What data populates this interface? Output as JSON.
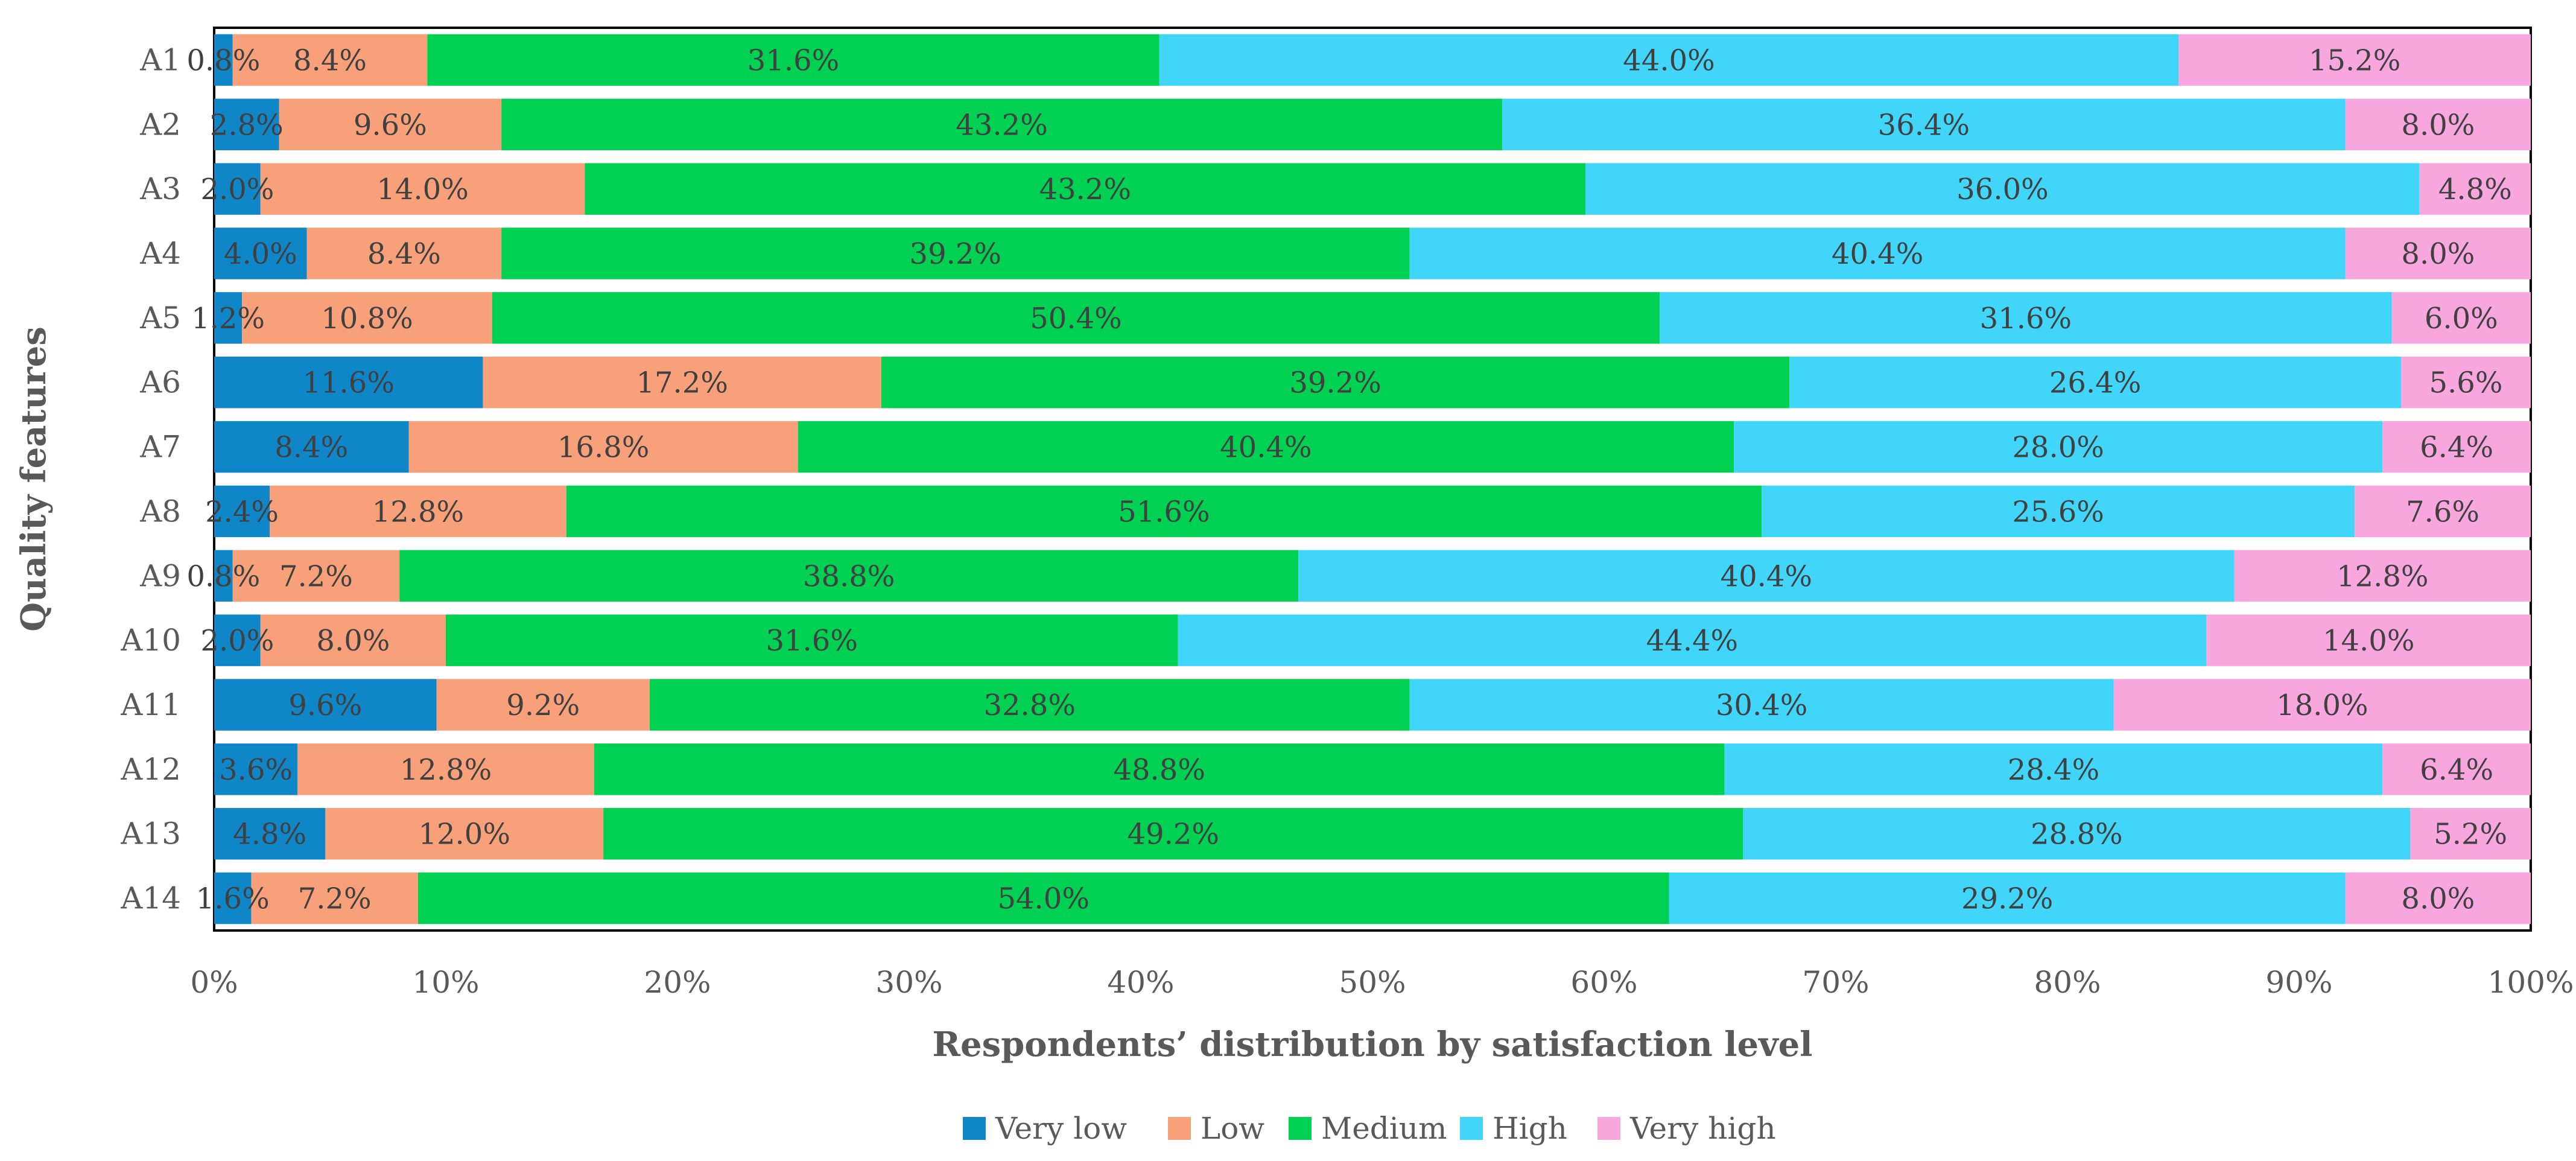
{
  "chart_data": {
    "type": "bar",
    "orientation": "horizontal",
    "stacked": "percent",
    "title": "",
    "xlabel": "Respondents’ distribution by satisfaction level",
    "ylabel": "Quality features",
    "xlim": [
      0,
      100
    ],
    "xticks": [
      "0%",
      "10%",
      "20%",
      "30%",
      "40%",
      "50%",
      "60%",
      "70%",
      "80%",
      "90%",
      "100%"
    ],
    "grid": false,
    "legend_position": "bottom",
    "categories": [
      "A1",
      "A2",
      "A3",
      "A4",
      "A5",
      "A6",
      "A7",
      "A8",
      "A9",
      "A10",
      "A11",
      "A12",
      "A13",
      "A14"
    ],
    "series": [
      {
        "name": "Very low",
        "color": "#0f86c8",
        "values": [
          0.8,
          2.8,
          2.0,
          4.0,
          1.2,
          11.6,
          8.4,
          2.4,
          0.8,
          2.0,
          9.6,
          3.6,
          4.8,
          1.6
        ],
        "labels": [
          "0.8%",
          "2.8%",
          "2.0%",
          "4.0%",
          "1.2%",
          "11.6%",
          "8.4%",
          "2.4%",
          "0.8%",
          "2.0%",
          "9.6%",
          "3.6%",
          "4.8%",
          "1.6%"
        ]
      },
      {
        "name": "Low",
        "color": "#f7a079",
        "values": [
          8.4,
          9.6,
          14.0,
          8.4,
          10.8,
          17.2,
          16.8,
          12.8,
          7.2,
          8.0,
          9.2,
          12.8,
          12.0,
          7.2
        ],
        "labels": [
          "8.4%",
          "9.6%",
          "14.0%",
          "8.4%",
          "10.8%",
          "17.2%",
          "16.8%",
          "12.8%",
          "7.2%",
          "8.0%",
          "9.2%",
          "12.8%",
          "12.0%",
          "7.2%"
        ]
      },
      {
        "name": "Medium",
        "color": "#00d152",
        "values": [
          31.6,
          43.2,
          43.2,
          39.2,
          50.4,
          39.2,
          40.4,
          51.6,
          38.8,
          31.6,
          32.8,
          48.8,
          49.2,
          54.0
        ],
        "labels": [
          "31.6%",
          "43.2%",
          "43.2%",
          "39.2%",
          "50.4%",
          "39.2%",
          "40.4%",
          "51.6%",
          "38.8%",
          "31.6%",
          "32.8%",
          "48.8%",
          "49.2%",
          "54.0%"
        ]
      },
      {
        "name": "High",
        "color": "#41d5fa",
        "values": [
          44.0,
          36.4,
          36.0,
          40.4,
          31.6,
          26.4,
          28.0,
          25.6,
          40.4,
          44.4,
          30.4,
          28.4,
          28.8,
          29.2
        ],
        "labels": [
          "44.0%",
          "36.4%",
          "36.0%",
          "40.4%",
          "31.6%",
          "26.4%",
          "28.0%",
          "25.6%",
          "40.4%",
          "44.4%",
          "30.4%",
          "28.4%",
          "28.8%",
          "29.2%"
        ]
      },
      {
        "name": "Very high",
        "color": "#f7a6de",
        "values": [
          15.2,
          8.0,
          4.8,
          8.0,
          6.0,
          5.6,
          6.4,
          7.6,
          12.8,
          14.0,
          18.0,
          6.4,
          5.2,
          8.0
        ],
        "labels": [
          "15.2%",
          "8.0%",
          "4.8%",
          "8.0%",
          "6.0%",
          "5.6%",
          "6.4%",
          "7.6%",
          "12.8%",
          "14.0%",
          "18.0%",
          "6.4%",
          "5.2%",
          "8.0%"
        ]
      }
    ]
  }
}
